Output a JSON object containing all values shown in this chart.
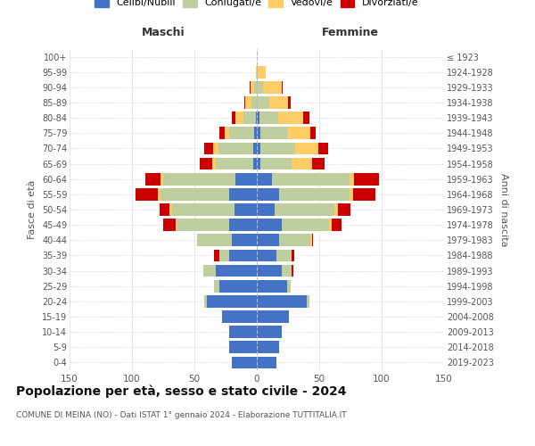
{
  "age_groups": [
    "0-4",
    "5-9",
    "10-14",
    "15-19",
    "20-24",
    "25-29",
    "30-34",
    "35-39",
    "40-44",
    "45-49",
    "50-54",
    "55-59",
    "60-64",
    "65-69",
    "70-74",
    "75-79",
    "80-84",
    "85-89",
    "90-94",
    "95-99",
    "100+"
  ],
  "birth_years": [
    "2019-2023",
    "2014-2018",
    "2009-2013",
    "2004-2008",
    "1999-2003",
    "1994-1998",
    "1989-1993",
    "1984-1988",
    "1979-1983",
    "1974-1978",
    "1969-1973",
    "1964-1968",
    "1959-1963",
    "1954-1958",
    "1949-1953",
    "1944-1948",
    "1939-1943",
    "1934-1938",
    "1929-1933",
    "1924-1928",
    "≤ 1923"
  ],
  "male_celibi": [
    20,
    22,
    22,
    28,
    40,
    30,
    33,
    22,
    20,
    22,
    18,
    22,
    17,
    3,
    3,
    2,
    1,
    0,
    0,
    0,
    0
  ],
  "male_coniugati": [
    0,
    0,
    0,
    0,
    2,
    4,
    10,
    8,
    28,
    42,
    50,
    55,
    58,
    30,
    28,
    20,
    10,
    4,
    2,
    0,
    0
  ],
  "male_vedovi": [
    0,
    0,
    0,
    0,
    0,
    0,
    0,
    0,
    0,
    1,
    2,
    2,
    2,
    3,
    4,
    4,
    6,
    5,
    3,
    1,
    0
  ],
  "male_divorziati": [
    0,
    0,
    0,
    0,
    0,
    0,
    0,
    4,
    0,
    10,
    8,
    18,
    12,
    10,
    7,
    4,
    3,
    1,
    1,
    0,
    0
  ],
  "female_nubili": [
    16,
    18,
    20,
    26,
    40,
    24,
    20,
    16,
    18,
    20,
    14,
    18,
    12,
    3,
    3,
    3,
    2,
    0,
    0,
    0,
    0
  ],
  "female_coniugate": [
    0,
    0,
    0,
    0,
    2,
    3,
    8,
    12,
    25,
    38,
    48,
    56,
    62,
    25,
    28,
    22,
    15,
    10,
    5,
    1,
    0
  ],
  "female_vedove": [
    0,
    0,
    0,
    0,
    0,
    0,
    0,
    0,
    1,
    2,
    3,
    3,
    4,
    16,
    18,
    18,
    20,
    15,
    15,
    6,
    0
  ],
  "female_divorziate": [
    0,
    0,
    0,
    0,
    0,
    0,
    1,
    2,
    1,
    8,
    10,
    18,
    20,
    10,
    8,
    4,
    5,
    2,
    1,
    0,
    0
  ],
  "colors": {
    "celibi": "#4472C4",
    "coniugati": "#BFCE9E",
    "vedovi": "#FFCC66",
    "divorziati": "#CC0000"
  },
  "title": "Popolazione per età, sesso e stato civile - 2024",
  "subtitle": "COMUNE DI MEINA (NO) - Dati ISTAT 1° gennaio 2024 - Elaborazione TUTTITALIA.IT",
  "maschi_label": "Maschi",
  "femmine_label": "Femmine",
  "ylabel_left": "Fasce di età",
  "ylabel_right": "Anni di nascita",
  "xlim": 150,
  "legend_labels": [
    "Celibi/Nubili",
    "Coniugati/e",
    "Vedovi/e",
    "Divorziati/e"
  ],
  "bg_color": "#FFFFFF",
  "grid_color": "#DDDDDD"
}
